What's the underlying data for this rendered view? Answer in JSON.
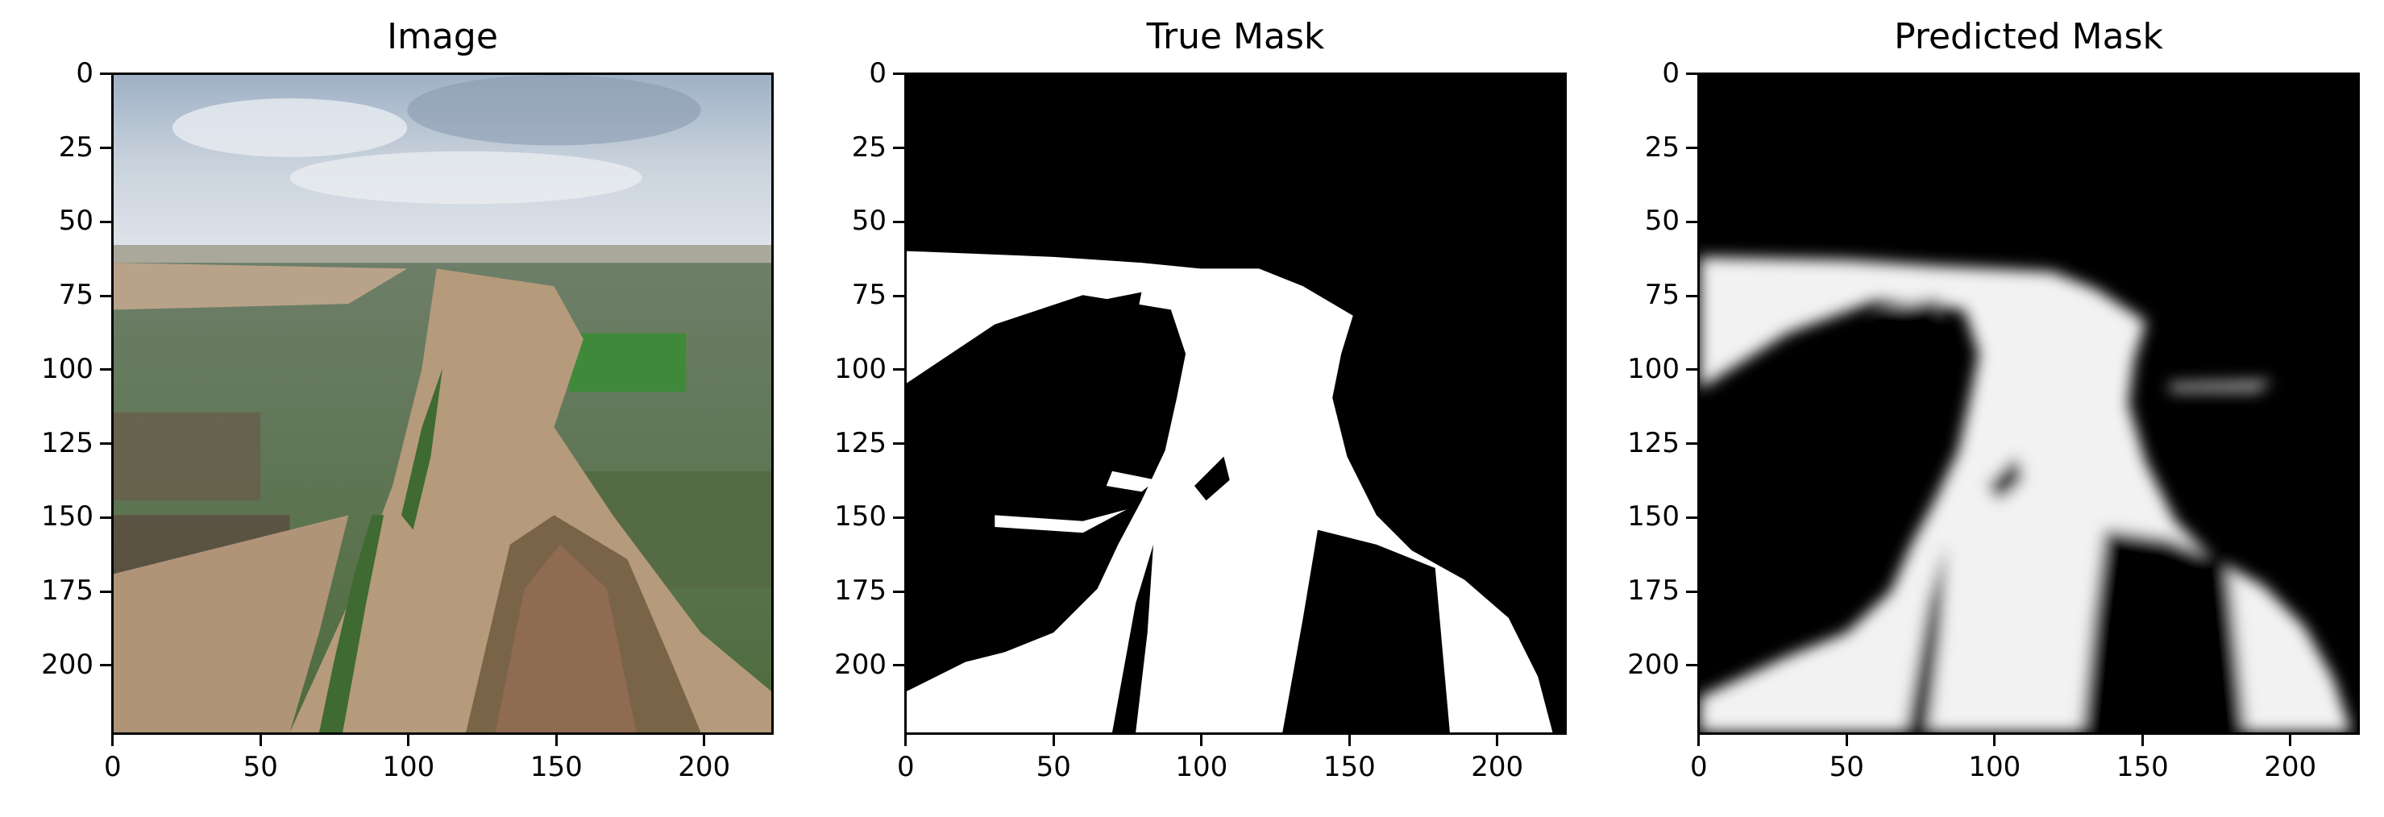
{
  "panels": [
    {
      "title": "Image"
    },
    {
      "title": "True Mask"
    },
    {
      "title": "Predicted Mask"
    }
  ],
  "axes": {
    "y_ticks": [
      "0",
      "25",
      "50",
      "75",
      "100",
      "125",
      "150",
      "175",
      "200"
    ],
    "x_ticks": [
      "0",
      "50",
      "100",
      "150",
      "200"
    ],
    "x_range": [
      0,
      223
    ],
    "y_range": [
      0,
      223
    ],
    "y_tick_values": [
      0,
      25,
      50,
      75,
      100,
      125,
      150,
      175,
      200
    ],
    "x_tick_values": [
      0,
      50,
      100,
      150,
      200
    ]
  }
}
